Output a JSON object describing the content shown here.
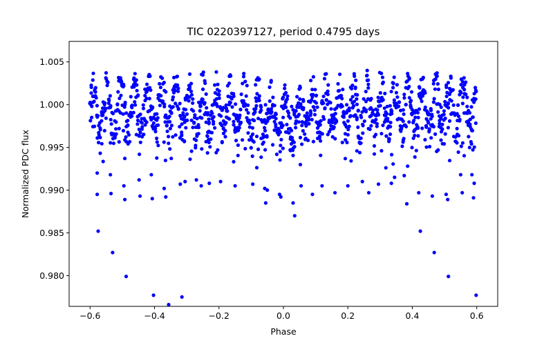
{
  "chart_data": {
    "type": "scatter",
    "title": "TIC 0220397127, period 0.4795 days",
    "xlabel": "Phase",
    "ylabel": "Normalized PDC flux",
    "xlim": [
      -0.665,
      0.665
    ],
    "ylim": [
      0.9764,
      1.0074
    ],
    "xticks": [
      -0.6,
      -0.4,
      -0.2,
      0.0,
      0.2,
      0.4,
      0.6
    ],
    "xtick_labels": [
      "−0.6",
      "−0.4",
      "−0.2",
      "0.0",
      "0.2",
      "0.4",
      "0.6"
    ],
    "yticks": [
      0.98,
      0.985,
      0.99,
      0.995,
      1.0,
      1.005
    ],
    "ytick_labels": [
      "0.980",
      "0.985",
      "0.990",
      "0.995",
      "1.000",
      "1.005"
    ],
    "marker_color": "#0000ff",
    "grid": false,
    "legend": "none",
    "sampling_step": 0.0045,
    "series": [
      {
        "low_points": [
          [
            -0.595,
            0.9985
          ],
          [
            -0.578,
            0.992
          ],
          [
            -0.578,
            0.9895
          ],
          [
            -0.575,
            0.9852
          ],
          [
            -0.537,
            0.9918
          ],
          [
            -0.535,
            0.9896
          ],
          [
            -0.53,
            0.9827
          ],
          [
            -0.495,
            0.9905
          ],
          [
            -0.492,
            0.9889
          ],
          [
            -0.488,
            0.9799
          ],
          [
            -0.448,
            0.9912
          ],
          [
            -0.445,
            0.9893
          ],
          [
            -0.41,
            0.9918
          ],
          [
            -0.407,
            0.989
          ],
          [
            -0.403,
            0.9777
          ],
          [
            -0.37,
            0.9902
          ],
          [
            -0.365,
            0.9892
          ],
          [
            -0.356,
            0.9766
          ],
          [
            -0.32,
            0.9907
          ],
          [
            -0.315,
            0.9775
          ],
          [
            -0.305,
            0.991
          ],
          [
            -0.27,
            0.9912
          ],
          [
            -0.255,
            0.9905
          ],
          [
            -0.23,
            0.9908
          ],
          [
            -0.195,
            0.991
          ],
          [
            -0.15,
            0.9905
          ],
          [
            -0.095,
            0.9907
          ],
          [
            -0.058,
            0.9902
          ],
          [
            -0.055,
            0.9885
          ],
          [
            -0.05,
            0.99
          ],
          [
            -0.012,
            0.9895
          ],
          [
            -0.008,
            0.9892
          ],
          [
            0.03,
            0.9885
          ],
          [
            0.035,
            0.987
          ],
          [
            0.055,
            0.9905
          ],
          [
            0.09,
            0.9895
          ],
          [
            0.12,
            0.9905
          ],
          [
            0.16,
            0.9897
          ],
          [
            0.2,
            0.9905
          ],
          [
            0.245,
            0.991
          ],
          [
            0.265,
            0.9897
          ],
          [
            0.295,
            0.9907
          ],
          [
            0.335,
            0.9908
          ],
          [
            0.345,
            0.9915
          ],
          [
            0.375,
            0.9917
          ],
          [
            0.383,
            0.9884
          ],
          [
            0.42,
            0.9897
          ],
          [
            0.425,
            0.9852
          ],
          [
            0.462,
            0.9893
          ],
          [
            0.468,
            0.9827
          ],
          [
            0.505,
            0.9895
          ],
          [
            0.51,
            0.9889
          ],
          [
            0.512,
            0.9799
          ],
          [
            0.55,
            0.9918
          ],
          [
            0.555,
            0.9897
          ],
          [
            0.585,
            0.9918
          ],
          [
            0.59,
            0.9891
          ],
          [
            0.598,
            0.9777
          ],
          [
            0.592,
            0.9908
          ]
        ]
      }
    ]
  }
}
